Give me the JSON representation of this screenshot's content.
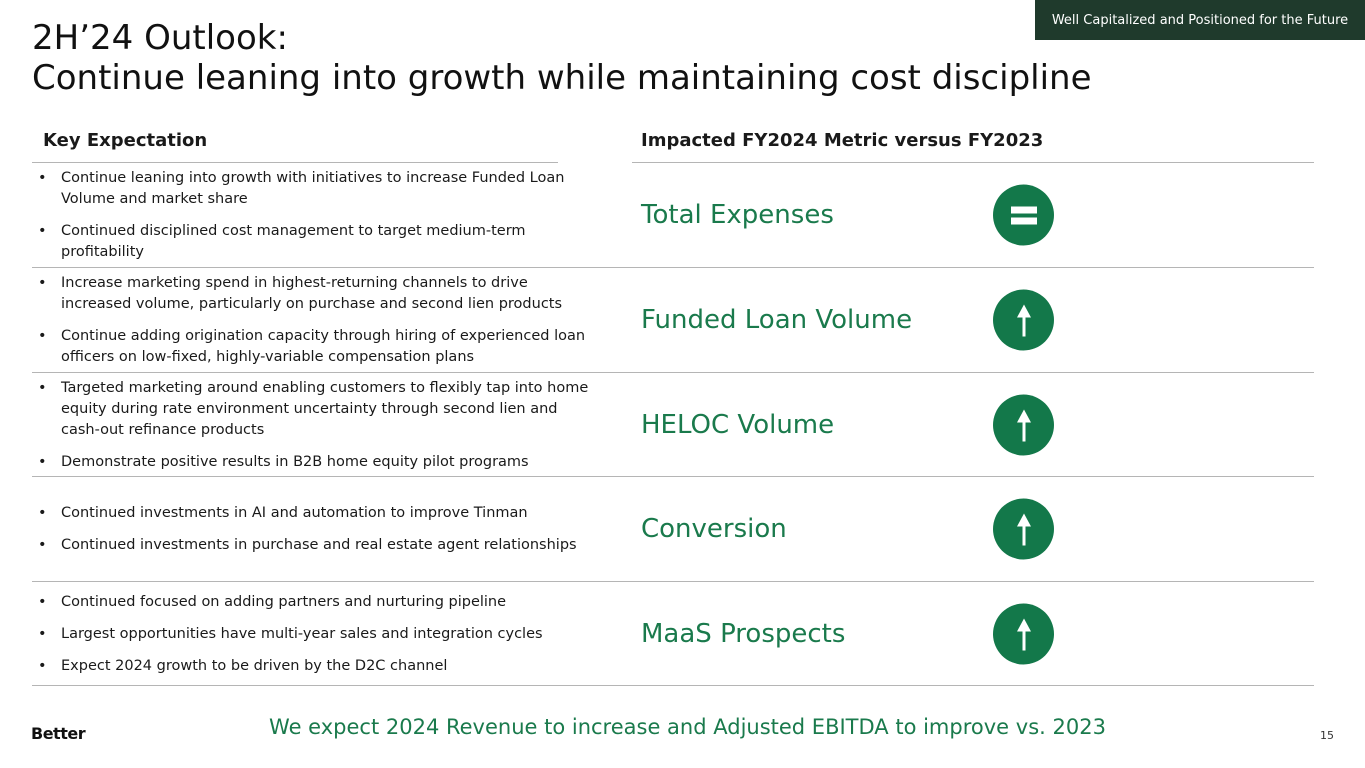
{
  "tagline": "Well Capitalized and Positioned for the Future",
  "title": {
    "line1": "2H’24 Outlook:",
    "line2": "Continue leaning into growth while maintaining cost discipline"
  },
  "columns": {
    "left_header": "Key Expectation",
    "right_header": "Impacted FY2024 Metric versus FY2023"
  },
  "rows": [
    {
      "bullets": [
        "Continue leaning into growth with initiatives to increase Funded Loan Volume and market share",
        "Continued disciplined cost management to target medium-term profitability"
      ],
      "metric": "Total Expenses",
      "indicator": "equal-icon"
    },
    {
      "bullets": [
        "Increase marketing spend in highest-returning channels to drive increased volume, particularly on purchase and second lien products",
        "Continue adding origination capacity through hiring of experienced loan officers on low-fixed, highly-variable compensation plans"
      ],
      "metric": "Funded Loan Volume",
      "indicator": "arrow-up-icon"
    },
    {
      "bullets": [
        "Targeted marketing around enabling customers to flexibly tap into home equity during rate environment uncertainty through second lien and cash-out refinance products",
        "Demonstrate positive results in B2B home equity pilot programs"
      ],
      "metric": "HELOC Volume",
      "indicator": "arrow-up-icon"
    },
    {
      "bullets": [
        "Continued investments in AI and automation to improve Tinman",
        "Continued investments in purchase and real estate agent relationships"
      ],
      "metric": "Conversion",
      "indicator": "arrow-up-icon"
    },
    {
      "bullets": [
        "Continued focused on adding partners and nurturing pipeline",
        "Largest opportunities have multi-year sales and integration cycles",
        "Expect 2024 growth to be driven by the D2C channel"
      ],
      "metric": "MaaS Prospects",
      "indicator": "arrow-up-icon"
    }
  ],
  "footer_note": "We expect 2024 Revenue to increase and Adjusted EBITDA to improve vs. 2023",
  "logo_text": "Better",
  "page_number": "15",
  "colors": {
    "accent_green": "#1a7a4c",
    "indicator_green": "#13784a",
    "tagline_bg": "#1f3a2c"
  }
}
